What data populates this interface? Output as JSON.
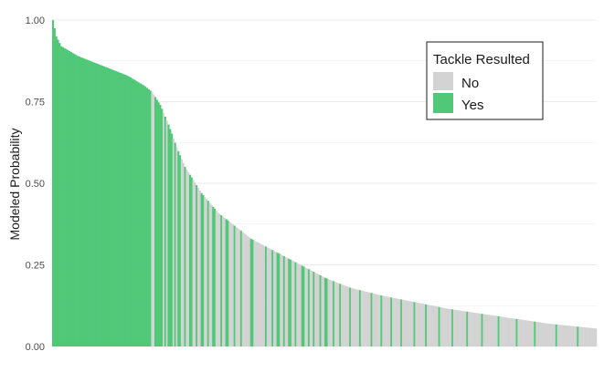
{
  "chart_data": {
    "type": "bar",
    "title": "",
    "xlabel": "",
    "ylabel": "Modeled Probability",
    "ylim": [
      0,
      1
    ],
    "yticks": [
      0,
      0.25,
      0.5,
      0.75,
      1
    ],
    "ytick_labels": [
      "0.00",
      "0.25",
      "0.50",
      "0.75",
      "1.00"
    ],
    "grid": true,
    "legend": {
      "title": "Tackle Resulted",
      "position": "top-right",
      "entries": [
        {
          "label": "No",
          "color": "#d3d3d3"
        },
        {
          "label": "Yes",
          "color": "#50c878"
        }
      ]
    },
    "bar_count": 330,
    "curve_knots": [
      [
        0,
        1.0
      ],
      [
        2,
        0.95
      ],
      [
        5,
        0.92
      ],
      [
        15,
        0.89
      ],
      [
        30,
        0.86
      ],
      [
        45,
        0.83
      ],
      [
        55,
        0.8
      ],
      [
        60,
        0.78
      ],
      [
        65,
        0.74
      ],
      [
        70,
        0.68
      ],
      [
        75,
        0.61
      ],
      [
        80,
        0.55
      ],
      [
        90,
        0.47
      ],
      [
        100,
        0.41
      ],
      [
        110,
        0.37
      ],
      [
        120,
        0.33
      ],
      [
        135,
        0.29
      ],
      [
        150,
        0.25
      ],
      [
        165,
        0.21
      ],
      [
        180,
        0.18
      ],
      [
        200,
        0.155
      ],
      [
        220,
        0.135
      ],
      [
        240,
        0.115
      ],
      [
        260,
        0.1
      ],
      [
        280,
        0.085
      ],
      [
        300,
        0.07
      ],
      [
        329,
        0.055
      ]
    ],
    "yes_ranges": [
      [
        0,
        59
      ],
      [
        62,
        66
      ],
      [
        68,
        68
      ],
      [
        70,
        72
      ],
      [
        74,
        74
      ],
      [
        76,
        77
      ],
      [
        80,
        80
      ],
      [
        83,
        84
      ],
      [
        87,
        87
      ],
      [
        90,
        91
      ],
      [
        94,
        94
      ],
      [
        97,
        98
      ],
      [
        102,
        102
      ],
      [
        105,
        106
      ],
      [
        110,
        110
      ],
      [
        114,
        114
      ],
      [
        120,
        121
      ],
      [
        129,
        129
      ],
      [
        133,
        133
      ],
      [
        136,
        137
      ],
      [
        140,
        140
      ],
      [
        143,
        144
      ],
      [
        147,
        147
      ],
      [
        151,
        152
      ],
      [
        155,
        155
      ],
      [
        158,
        158
      ],
      [
        162,
        162
      ],
      [
        165,
        166
      ],
      [
        170,
        170
      ],
      [
        174,
        174
      ],
      [
        180,
        180
      ],
      [
        186,
        186
      ],
      [
        193,
        193
      ],
      [
        199,
        199
      ],
      [
        205,
        205
      ],
      [
        211,
        211
      ],
      [
        219,
        219
      ],
      [
        226,
        226
      ],
      [
        234,
        234
      ],
      [
        242,
        242
      ],
      [
        251,
        251
      ],
      [
        260,
        260
      ],
      [
        270,
        270
      ],
      [
        281,
        281
      ],
      [
        292,
        292
      ],
      [
        305,
        305
      ],
      [
        318,
        318
      ]
    ]
  }
}
